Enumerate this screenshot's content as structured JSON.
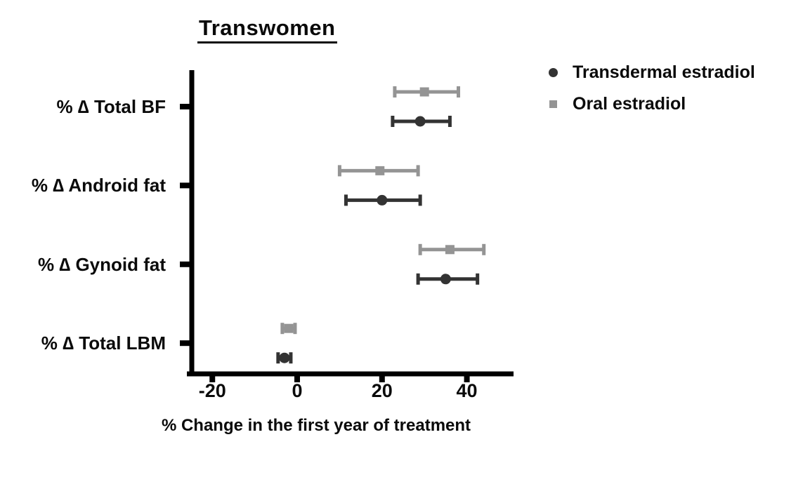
{
  "figure": {
    "background": "#ffffff",
    "text_color": "#0a0a0a"
  },
  "chart_data": {
    "type": "scatter",
    "subtype": "horizontal-forest-plot-with-error-bars",
    "title": "Transwomen",
    "title_underlined": true,
    "xlabel": "% Change in the first year of treatment",
    "ylabel": "",
    "categories": [
      "% ∆ Total BF",
      "% ∆ Android fat",
      "% ∆ Gynoid fat",
      "% ∆ Total LBM"
    ],
    "xlim": [
      -26,
      51
    ],
    "xticks": [
      -20,
      0,
      20,
      40
    ],
    "xtick_labels": [
      "-20",
      "0",
      "20",
      "40"
    ],
    "grid": false,
    "legend_position": "top-right",
    "axis_color": "#000000",
    "series": [
      {
        "name": "Transdermal estradiol",
        "marker": "circle",
        "color": "#333333",
        "row_position": "below-tick",
        "points": [
          {
            "category": "% ∆ Total BF",
            "value": 29,
            "ci_low": 22.5,
            "ci_high": 36
          },
          {
            "category": "% ∆ Android fat",
            "value": 20,
            "ci_low": 11.5,
            "ci_high": 29
          },
          {
            "category": "% ∆ Gynoid fat",
            "value": 35,
            "ci_low": 28.5,
            "ci_high": 42.5
          },
          {
            "category": "% ∆ Total LBM",
            "value": -3,
            "ci_low": -4.5,
            "ci_high": -1.5
          }
        ]
      },
      {
        "name": "Oral estradiol",
        "marker": "square",
        "color": "#949494",
        "row_position": "above-tick",
        "points": [
          {
            "category": "% ∆ Total BF",
            "value": 30,
            "ci_low": 23,
            "ci_high": 38
          },
          {
            "category": "% ∆ Android fat",
            "value": 19.5,
            "ci_low": 10,
            "ci_high": 28.5
          },
          {
            "category": "% ∆ Gynoid fat",
            "value": 36,
            "ci_low": 29,
            "ci_high": 44
          },
          {
            "category": "% ∆ Total LBM",
            "value": -2,
            "ci_low": -3.5,
            "ci_high": -0.5
          }
        ]
      }
    ]
  }
}
